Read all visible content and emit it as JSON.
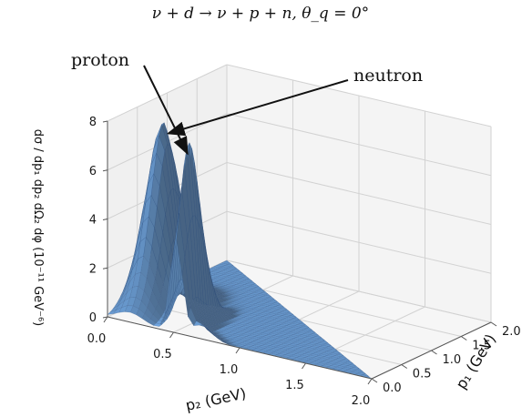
{
  "chart_data": {
    "type": "surface3d",
    "title": "ν + d → ν + p + n,  θ_q = 0°",
    "xlabel": "p₂ (GeV)",
    "ylabel": "p₁ (GeV)",
    "zlabel": "dσ / dp₁ dp₂ dΩ₂ dφ   (10⁻¹¹ GeV⁻⁶)",
    "xlim": [
      0,
      2
    ],
    "ylim": [
      0,
      2
    ],
    "zlim": [
      0,
      8
    ],
    "x_ticks": [
      "0.0",
      "0.5",
      "1.0",
      "1.5",
      "2.0"
    ],
    "y_ticks": [
      "0.0",
      "0.5",
      "1.0",
      "1.5",
      "2.0"
    ],
    "z_ticks": [
      "0",
      "2",
      "4",
      "6",
      "8"
    ],
    "grid": true,
    "surface_color": "#4a7fc0",
    "peaks": [
      {
        "label": "proton",
        "p2": 0.52,
        "p1": 0.22,
        "value": 7.0
      },
      {
        "label": "neutron",
        "p2": 0.17,
        "p1": 0.55,
        "value": 7.0
      }
    ],
    "support_region": "p1 + p2 ≤ 2.0",
    "ridge_level": 1.0
  }
}
